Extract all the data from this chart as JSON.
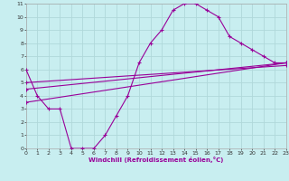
{
  "xlabel": "Windchill (Refroidissement éolien,°C)",
  "background_color": "#c8eef0",
  "grid_color": "#b0d8da",
  "line_color": "#990099",
  "xlim": [
    0,
    23
  ],
  "ylim": [
    0,
    11
  ],
  "xticks": [
    0,
    1,
    2,
    3,
    4,
    5,
    6,
    7,
    8,
    9,
    10,
    11,
    12,
    13,
    14,
    15,
    16,
    17,
    18,
    19,
    20,
    21,
    22,
    23
  ],
  "yticks": [
    0,
    1,
    2,
    3,
    4,
    5,
    6,
    7,
    8,
    9,
    10,
    11
  ],
  "line1_x": [
    0,
    1,
    2,
    3,
    4,
    5,
    6,
    7,
    8,
    9,
    10,
    11,
    12,
    13,
    14,
    15,
    16,
    17,
    18,
    19,
    20,
    21,
    22,
    23
  ],
  "line1_y": [
    6,
    4,
    3,
    3,
    0,
    0,
    0,
    1,
    2.5,
    4,
    6.5,
    8,
    9,
    10.5,
    11,
    11,
    10.5,
    10,
    8.5,
    8,
    7.5,
    7,
    6.5,
    6.5
  ],
  "line2_x": [
    0,
    23
  ],
  "line2_y": [
    3.5,
    6.5
  ],
  "line3_x": [
    0,
    23
  ],
  "line3_y": [
    4.5,
    6.5
  ],
  "line4_x": [
    0,
    23
  ],
  "line4_y": [
    5.0,
    6.3
  ]
}
